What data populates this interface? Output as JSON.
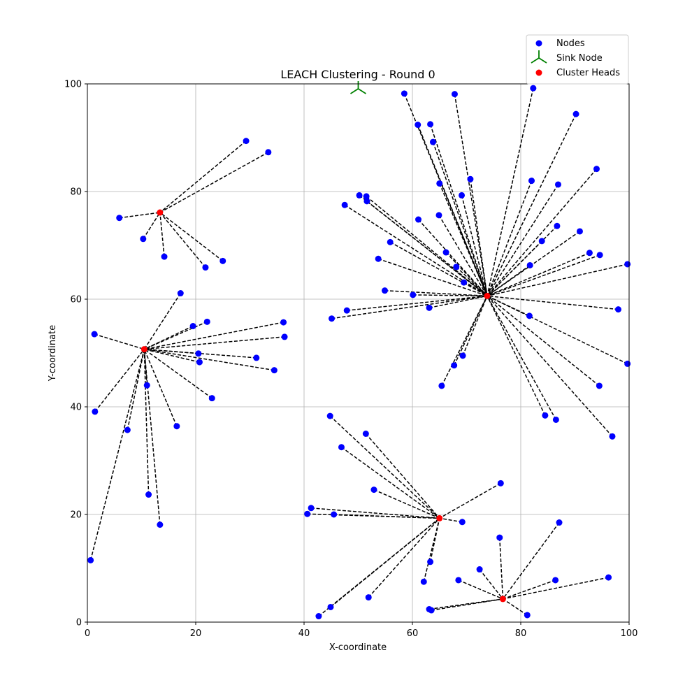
{
  "chart_data": {
    "type": "scatter",
    "title": "LEACH Clustering - Round 0",
    "xlabel": "X-coordinate",
    "ylabel": "Y-coordinate",
    "xlim": [
      0,
      100
    ],
    "ylim": [
      0,
      100
    ],
    "xticks": [
      0,
      20,
      40,
      60,
      80,
      100
    ],
    "yticks": [
      0,
      20,
      40,
      60,
      80,
      100
    ],
    "grid": true,
    "legend": {
      "placement": "top-right, above axes",
      "entries": [
        {
          "label": "Nodes",
          "marker": "circle",
          "color": "#0000ff"
        },
        {
          "label": "Sink Node",
          "marker": "tri-down",
          "color": "#008000"
        },
        {
          "label": "Cluster Heads",
          "marker": "circle",
          "color": "#ff0000"
        }
      ]
    },
    "colors": {
      "nodes": "#0000ff",
      "sink": "#008000",
      "cluster_heads": "#ff0000",
      "links": "#000000"
    },
    "sink": {
      "x": 50,
      "y": 100
    },
    "clusters": [
      {
        "head": {
          "x": 13.4,
          "y": 76.1
        },
        "members": [
          [
            29.3,
            89.4
          ],
          [
            33.4,
            87.3
          ],
          [
            5.9,
            75.1
          ],
          [
            10.3,
            71.2
          ],
          [
            14.2,
            67.9
          ],
          [
            21.8,
            65.9
          ],
          [
            25.0,
            67.1
          ]
        ]
      },
      {
        "head": {
          "x": 10.5,
          "y": 50.7
        },
        "members": [
          [
            17.2,
            61.1
          ],
          [
            1.3,
            53.5
          ],
          [
            19.5,
            55.0
          ],
          [
            22.1,
            55.8
          ],
          [
            36.2,
            55.7
          ],
          [
            36.4,
            53.0
          ],
          [
            20.5,
            49.9
          ],
          [
            20.7,
            48.3
          ],
          [
            31.2,
            49.1
          ],
          [
            34.5,
            46.8
          ],
          [
            11.0,
            44.0
          ],
          [
            23.0,
            41.6
          ],
          [
            1.4,
            39.1
          ],
          [
            7.4,
            35.7
          ],
          [
            16.5,
            36.4
          ],
          [
            11.3,
            23.7
          ],
          [
            13.4,
            18.1
          ],
          [
            0.6,
            11.5
          ]
        ]
      },
      {
        "head": {
          "x": 73.8,
          "y": 60.6
        },
        "members": [
          [
            58.5,
            98.2
          ],
          [
            67.8,
            98.1
          ],
          [
            82.3,
            99.2
          ],
          [
            61.0,
            92.4
          ],
          [
            63.3,
            92.5
          ],
          [
            90.2,
            94.4
          ],
          [
            63.8,
            89.2
          ],
          [
            94.0,
            84.2
          ],
          [
            70.7,
            82.3
          ],
          [
            82.0,
            82.0
          ],
          [
            86.9,
            81.3
          ],
          [
            65.0,
            81.5
          ],
          [
            50.2,
            79.3
          ],
          [
            51.5,
            79.1
          ],
          [
            51.6,
            78.2
          ],
          [
            47.5,
            77.5
          ],
          [
            69.1,
            79.3
          ],
          [
            64.9,
            75.6
          ],
          [
            61.1,
            74.8
          ],
          [
            86.7,
            73.6
          ],
          [
            90.9,
            72.6
          ],
          [
            83.9,
            70.8
          ],
          [
            55.9,
            70.6
          ],
          [
            66.2,
            68.7
          ],
          [
            92.7,
            68.6
          ],
          [
            94.6,
            68.2
          ],
          [
            53.7,
            67.5
          ],
          [
            81.7,
            66.3
          ],
          [
            68.1,
            66.0
          ],
          [
            69.5,
            63.1
          ],
          [
            99.7,
            66.5
          ],
          [
            54.9,
            61.6
          ],
          [
            60.1,
            60.8
          ],
          [
            63.1,
            58.4
          ],
          [
            47.9,
            57.9
          ],
          [
            45.1,
            56.4
          ],
          [
            98.0,
            58.1
          ],
          [
            81.6,
            56.9
          ],
          [
            69.3,
            49.5
          ],
          [
            67.7,
            47.7
          ],
          [
            99.7,
            48.0
          ],
          [
            65.4,
            43.9
          ],
          [
            94.5,
            43.9
          ],
          [
            84.5,
            38.4
          ],
          [
            86.5,
            37.6
          ],
          [
            96.9,
            34.5
          ]
        ]
      },
      {
        "head": {
          "x": 65.0,
          "y": 19.3
        },
        "members": [
          [
            44.8,
            38.3
          ],
          [
            51.4,
            35.0
          ],
          [
            46.9,
            32.5
          ],
          [
            52.9,
            24.6
          ],
          [
            76.3,
            25.8
          ],
          [
            41.3,
            21.2
          ],
          [
            40.6,
            20.1
          ],
          [
            45.5,
            20.0
          ],
          [
            69.2,
            18.6
          ],
          [
            63.3,
            11.2
          ],
          [
            62.1,
            7.5
          ],
          [
            51.9,
            4.6
          ],
          [
            44.9,
            2.8
          ],
          [
            42.7,
            1.1
          ]
        ]
      },
      {
        "head": {
          "x": 76.7,
          "y": 4.3
        },
        "members": [
          [
            76.1,
            15.7
          ],
          [
            87.1,
            18.5
          ],
          [
            72.4,
            9.8
          ],
          [
            68.5,
            7.8
          ],
          [
            86.4,
            7.8
          ],
          [
            96.2,
            8.3
          ],
          [
            63.1,
            2.4
          ],
          [
            63.5,
            2.2
          ],
          [
            81.2,
            1.3
          ]
        ]
      }
    ]
  }
}
